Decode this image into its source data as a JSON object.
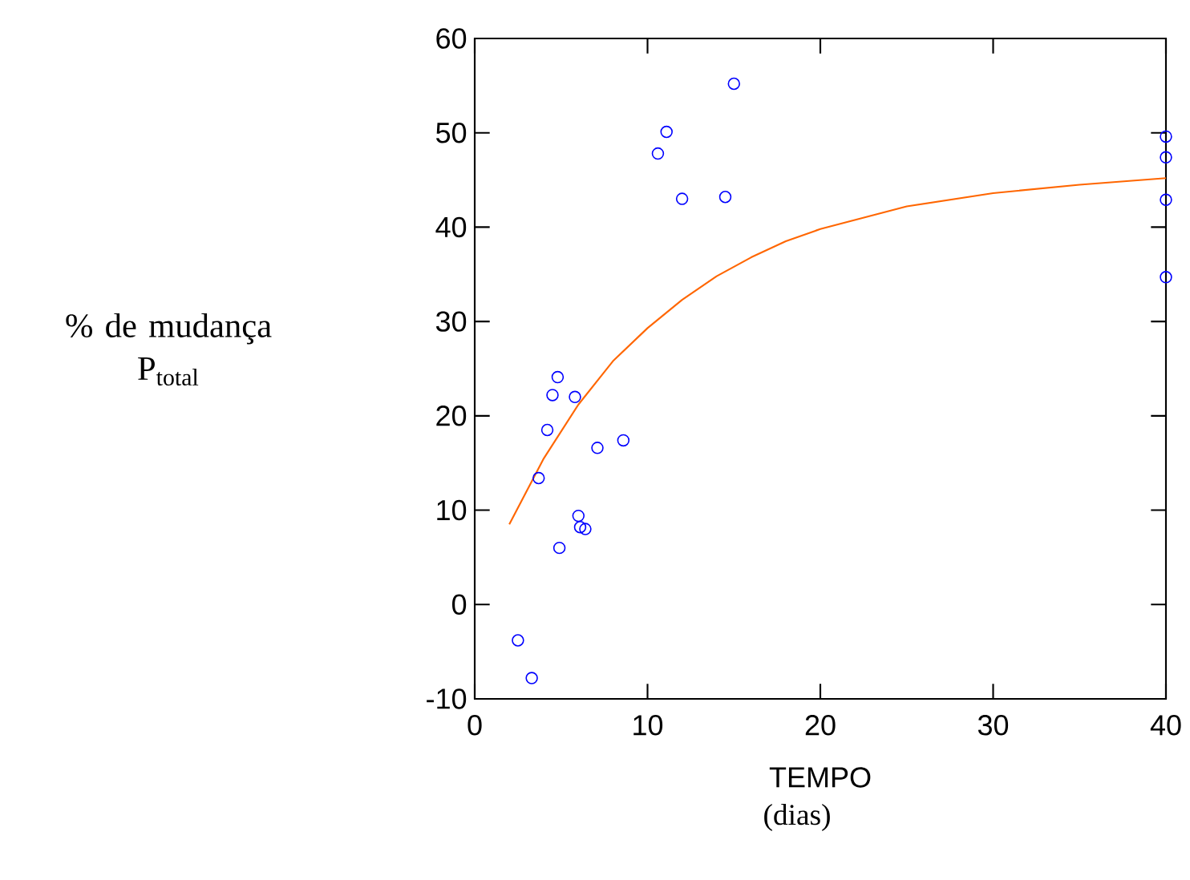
{
  "chart_data": {
    "type": "scatter",
    "xlabel": "TEMPO",
    "ylabel": "% de mudança P$_{total}$",
    "annotations": [
      "(dias)"
    ],
    "xlim": [
      0,
      40
    ],
    "ylim": [
      -10,
      60
    ],
    "xticks": [
      0,
      10,
      20,
      30,
      40
    ],
    "yticks": [
      -10,
      0,
      10,
      20,
      30,
      40,
      50,
      60
    ],
    "series": [
      {
        "color": "#0000ff",
        "marker": "circle",
        "x": [
          2.5,
          3.3,
          3.7,
          4.2,
          4.5,
          4.8,
          4.9,
          5.8,
          6.0,
          6.1,
          6.4,
          7.1,
          8.6,
          10.6,
          11.1,
          12.0,
          14.5,
          15.0,
          40,
          40,
          40,
          40
        ],
        "values": [
          -3.8,
          -7.8,
          13.4,
          18.5,
          22.2,
          24.1,
          6.0,
          22.0,
          9.4,
          8.2,
          8.0,
          16.6,
          17.4,
          47.8,
          50.1,
          43.0,
          43.2,
          55.2,
          49.6,
          47.4,
          42.9,
          34.7
        ]
      },
      {
        "type": "line",
        "color": "#ff6600",
        "marker": "none",
        "x": [
          2,
          4,
          6,
          8,
          10,
          12,
          14,
          16,
          18,
          20,
          25,
          30,
          35,
          40
        ],
        "values": [
          8.5,
          15.5,
          21.2,
          25.8,
          29.3,
          32.3,
          34.8,
          36.8,
          38.5,
          39.8,
          42.2,
          43.6,
          44.5,
          45.2
        ]
      }
    ]
  }
}
